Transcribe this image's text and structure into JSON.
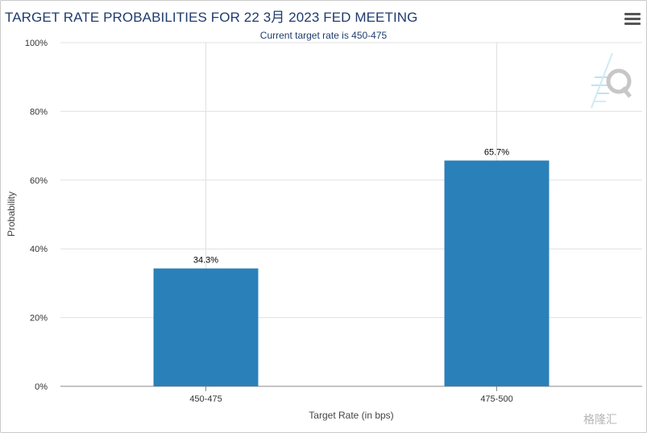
{
  "header": {
    "title": "TARGET RATE PROBABILITIES FOR 22 3月 2023 FED MEETING",
    "subtitle": "Current target rate is 450-475",
    "menu_icon": "hamburger-menu-icon"
  },
  "chart_data": {
    "type": "bar",
    "title": "TARGET RATE PROBABILITIES FOR 22 3月 2023 FED MEETING",
    "subtitle": "Current target rate is 450-475",
    "categories": [
      "450-475",
      "475-500"
    ],
    "values": [
      34.3,
      65.7
    ],
    "data_labels": [
      "34.3%",
      "65.7%"
    ],
    "xlabel": "Target Rate (in bps)",
    "ylabel": "Probability",
    "ylim": [
      0,
      100
    ],
    "yticks": [
      "0%",
      "20%",
      "40%",
      "60%",
      "80%",
      "100%"
    ],
    "ytick_values": [
      0,
      20,
      40,
      60,
      80,
      100
    ],
    "grid": true,
    "bar_color": "#2a80b9",
    "grid_color": "#e0e0e0"
  },
  "watermark": "格隆汇"
}
